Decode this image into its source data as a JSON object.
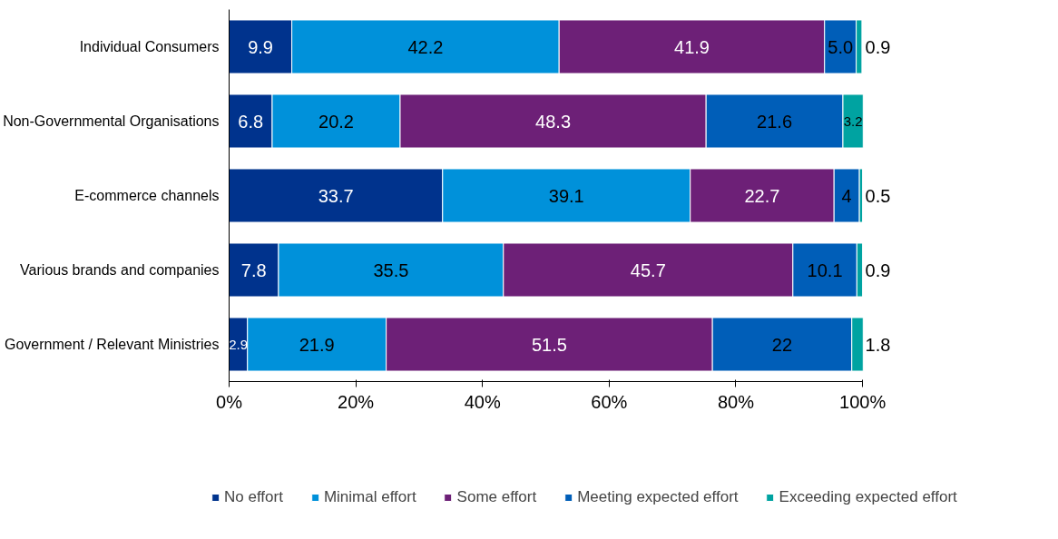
{
  "chart_data": {
    "type": "bar",
    "orientation": "horizontal",
    "stacked": true,
    "categories": [
      "Individual Consumers",
      "Non-Governmental Organisations",
      "E-commerce channels",
      "Various brands and companies",
      "Government / Relevant Ministries"
    ],
    "series": [
      {
        "name": "No effort",
        "color": "#00338d",
        "values": [
          9.9,
          6.8,
          33.7,
          7.8,
          2.9
        ]
      },
      {
        "name": "Minimal effort",
        "color": "#0091da",
        "values": [
          42.2,
          20.2,
          39.1,
          35.5,
          21.9
        ]
      },
      {
        "name": "Some effort",
        "color": "#6d2077",
        "values": [
          41.9,
          48.3,
          22.7,
          45.7,
          51.5
        ]
      },
      {
        "name": "Meeting expected effort",
        "color": "#005eb8",
        "values": [
          5.0,
          21.6,
          4,
          10.1,
          22
        ],
        "value_labels": [
          "5.0",
          "21.6",
          "4",
          "10.1",
          "22"
        ]
      },
      {
        "name": "Exceeding expected effort",
        "color": "#00a3a1",
        "values": [
          0.9,
          3.2,
          0.5,
          0.9,
          1.8
        ]
      }
    ],
    "xlim": [
      0,
      100
    ],
    "xticks": [
      {
        "value": 0,
        "label": "0%"
      },
      {
        "value": 20,
        "label": "20%"
      },
      {
        "value": 40,
        "label": "40%"
      },
      {
        "value": 60,
        "label": "60%"
      },
      {
        "value": 80,
        "label": "80%"
      },
      {
        "value": 100,
        "label": "100%"
      }
    ],
    "data_labels": true,
    "grid": false,
    "legend": "bottom"
  }
}
